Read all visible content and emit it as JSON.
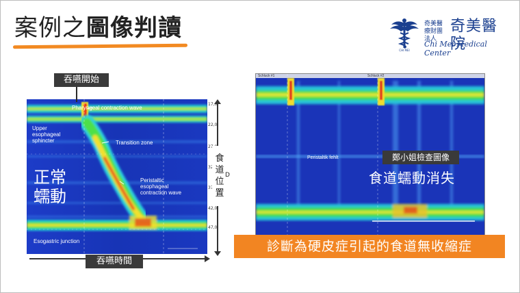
{
  "title": {
    "light": "案例之",
    "bold": "圖像判讀"
  },
  "logo": {
    "cn_small": "奇美醫療財團法人",
    "cn_big": "奇美醫院",
    "en": "Chi Mei Medical Center"
  },
  "left_figure": {
    "swallow_start_label": "吞嚥開始",
    "normal_peristalsis_label": "正常蠕動",
    "vertical_axis_label": "食道位置",
    "horizontal_axis_label": "吞嚥時間",
    "annotations": {
      "pharyngeal": "Pharyngeal contraction wave",
      "ues": "Upper esophageal sphincter",
      "transition": "Transition zone",
      "peristaltic": "Peristaltic esophageal contraction wave",
      "egj": "Esogastric junction"
    },
    "depth_ticks": [
      "17,0",
      "22,0",
      "27,0",
      "32",
      "37",
      "42,0",
      "47,0"
    ],
    "right_edge_letter": "D"
  },
  "right_figure": {
    "patient_label": "鄭小姐檢查圖像",
    "finding_label": "食道蠕動消失",
    "peristaltik_text": "Peristaltik fehlt",
    "marker_1": "Schluck #1",
    "marker_2": "Schluck #2"
  },
  "diagnosis": "診斷為硬皮症引起的食道無收縮症",
  "colors": {
    "accent_orange": "#f28522",
    "logo_blue": "#1a3f8f",
    "dark_tag": "#3a3a3a"
  }
}
